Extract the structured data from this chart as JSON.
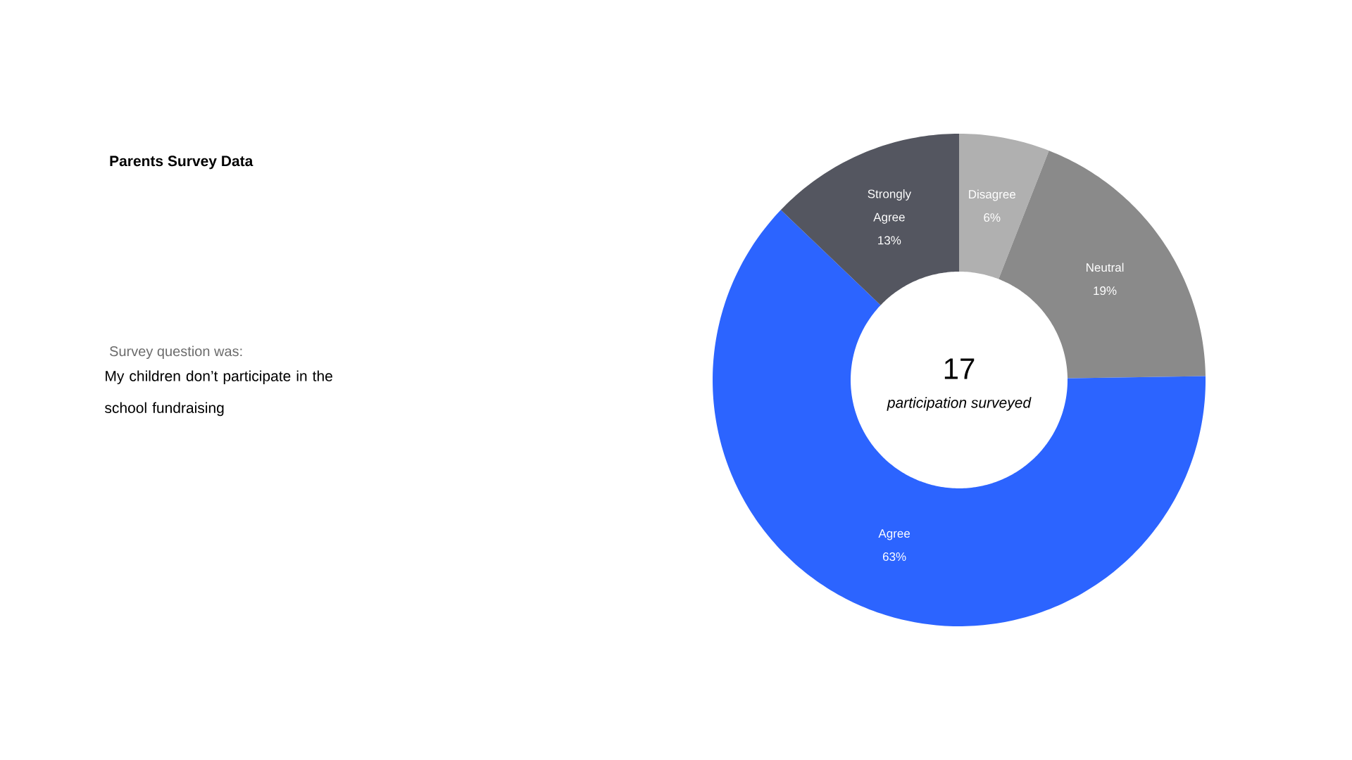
{
  "chart_data": {
    "type": "donut",
    "title": "Parents Survey Data",
    "categories": [
      "Disagree",
      "Neutral",
      "Agree",
      "Strongly Agree"
    ],
    "values": [
      6,
      19,
      63,
      13
    ],
    "value_labels": [
      "6%",
      "19%",
      "63%",
      "13%"
    ],
    "colors": [
      "#b0b0b0",
      "#8a8a8a",
      "#2c64ff",
      "#545660"
    ],
    "annotations": [
      "Survey question was:",
      "My children don’t participate in the school fundraising",
      "17",
      "participation surveyed"
    ]
  }
}
